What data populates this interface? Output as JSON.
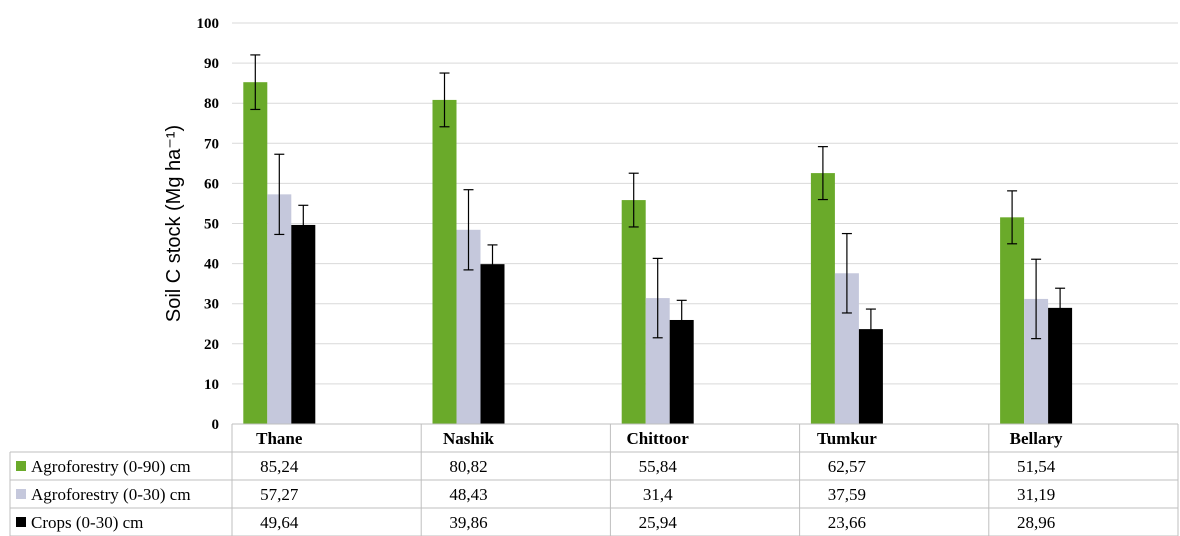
{
  "chart_data": {
    "type": "bar",
    "ylabel": "Soil C stock (Mg ha⁻¹)",
    "ylim": [
      0,
      100
    ],
    "yticks": [
      0,
      10,
      20,
      30,
      40,
      50,
      60,
      70,
      80,
      90,
      100
    ],
    "categories": [
      "Thane",
      "Nashik",
      "Chittoor",
      "Tumkur",
      "Bellary"
    ],
    "grid": true,
    "legend_placement": "data-table-left",
    "series": [
      {
        "name": "Agroforestry (0-90) cm",
        "color": "#6aaa2a",
        "values": [
          85.24,
          80.82,
          55.84,
          62.57,
          51.54
        ],
        "labels": [
          "85,24",
          "80,82",
          "55,84",
          "62,57",
          "51,54"
        ],
        "errors": [
          6.8,
          6.7,
          6.7,
          6.6,
          6.6
        ]
      },
      {
        "name": "Agroforestry (0-30) cm",
        "color": "#c5c8dc",
        "values": [
          57.27,
          48.43,
          31.4,
          37.59,
          31.19
        ],
        "labels": [
          "57,27",
          "48,43",
          "31,4",
          "37,59",
          "31,19"
        ],
        "errors": [
          10.0,
          10.0,
          9.9,
          9.9,
          9.9
        ]
      },
      {
        "name": "Crops (0-30) cm",
        "color": "#000000",
        "values": [
          49.64,
          39.86,
          25.94,
          23.66,
          28.96
        ],
        "labels": [
          "49,64",
          "39,86",
          "25,94",
          "23,66",
          "28,96"
        ],
        "errors": [
          4.9,
          4.8,
          4.9,
          5.0,
          4.9
        ]
      }
    ]
  }
}
